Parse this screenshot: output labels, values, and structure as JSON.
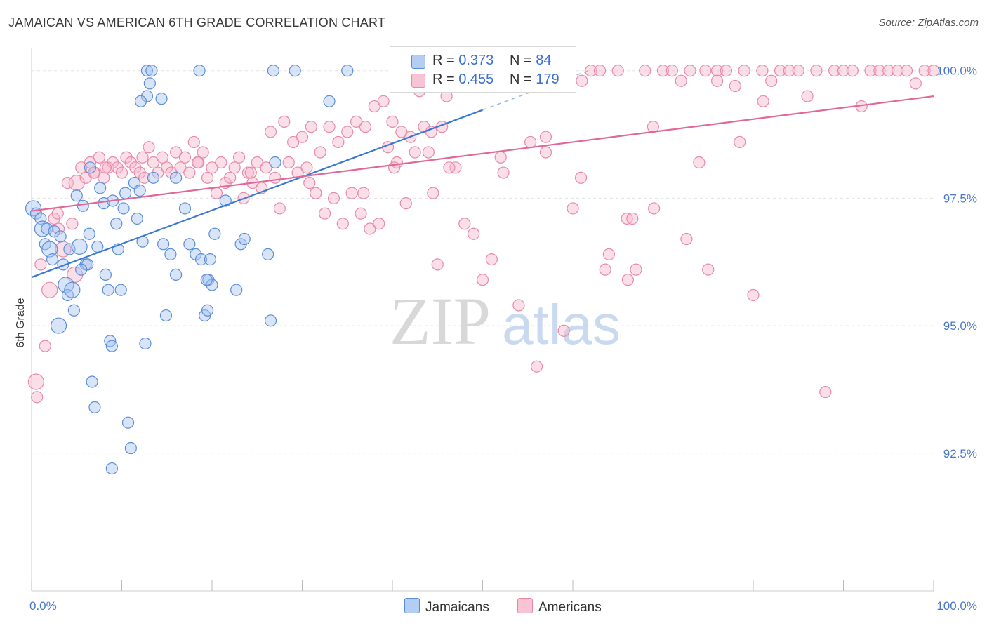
{
  "title": "JAMAICAN VS AMERICAN 6TH GRADE CORRELATION CHART",
  "source": "Source: ZipAtlas.com",
  "watermark": {
    "zip": "ZIP",
    "atlas": "atlas"
  },
  "colors": {
    "jamaicans_fill": "#a9c4ef",
    "jamaicans_stroke": "#5b8ed8",
    "jamaicans_line": "#3a78d4",
    "americans_fill": "#f6b8cc",
    "americans_stroke": "#e889a8",
    "americans_line": "#e06898",
    "tick_label": "#4a78c9",
    "grid": "#e3e3e3"
  },
  "legend_top": {
    "rows": [
      {
        "r_label": "R =",
        "r_value": "0.373",
        "n_label": "N =",
        "n_value": "84"
      },
      {
        "r_label": "R =",
        "r_value": "0.455",
        "n_label": "N =",
        "n_value": "179"
      }
    ]
  },
  "legend_bottom": {
    "items": [
      "Jamaicans",
      "Americans"
    ]
  },
  "chart_data": {
    "type": "scatter",
    "title": "JAMAICAN VS AMERICAN 6TH GRADE CORRELATION CHART",
    "xlabel": "",
    "ylabel": "6th Grade",
    "xlim": [
      0,
      100
    ],
    "ylim": [
      89.8,
      100.45
    ],
    "x_tick_labels": [
      "0.0%",
      "100.0%"
    ],
    "y_ticks": [
      92.5,
      95.0,
      97.5,
      100.0
    ],
    "y_tick_labels": [
      "92.5%",
      "95.0%",
      "97.5%",
      "100.0%"
    ],
    "grid": true,
    "legend_placement": "top-center",
    "series": [
      {
        "name": "Jamaicans",
        "r": 0.373,
        "n": 84,
        "trend": {
          "x": [
            0,
            50
          ],
          "y": [
            95.95,
            99.23
          ]
        },
        "x": [
          0.2,
          0.5,
          1.0,
          1.2,
          1.5,
          1.7,
          2.0,
          2.3,
          2.5,
          3.0,
          3.2,
          3.5,
          3.8,
          4.0,
          4.2,
          4.5,
          4.7,
          5.0,
          5.3,
          5.7,
          6.0,
          6.2,
          6.4,
          6.7,
          7.0,
          7.3,
          7.6,
          8.0,
          8.2,
          8.5,
          8.7,
          8.9,
          9.0,
          9.4,
          9.6,
          9.9,
          10.2,
          10.4,
          10.7,
          11.0,
          11.4,
          11.7,
          12.0,
          12.3,
          12.6,
          12.8,
          13.1,
          13.3,
          14.4,
          14.6,
          14.9,
          15.4,
          16.0,
          17.0,
          17.5,
          18.2,
          18.8,
          19.2,
          19.5,
          19.6,
          19.8,
          20.0,
          20.3,
          21.5,
          22.7,
          23.2,
          23.6,
          26.2,
          26.5,
          27.0,
          33.0,
          35.0
        ],
        "y": [
          97.3,
          97.2,
          97.1,
          96.9,
          96.6,
          96.9,
          96.5,
          96.3,
          96.85,
          95.0,
          96.75,
          96.2,
          95.8,
          95.6,
          96.5,
          95.7,
          95.3,
          97.55,
          96.55,
          97.35,
          96.2,
          96.2,
          96.8,
          93.9,
          93.4,
          96.55,
          97.7,
          97.4,
          96.0,
          95.7,
          94.7,
          94.6,
          97.45,
          97.0,
          96.5,
          95.7,
          97.3,
          97.6,
          93.1,
          92.6,
          97.8,
          97.1,
          97.65,
          96.65,
          94.65,
          100.0,
          99.75,
          100.0,
          99.45,
          96.6,
          95.2,
          96.4,
          96.0,
          97.3,
          96.6,
          96.4,
          96.3,
          95.2,
          95.3,
          95.9,
          96.3,
          95.8,
          96.8,
          97.45,
          95.7,
          96.6,
          96.7,
          96.4,
          95.1,
          98.2,
          99.4,
          100.0
        ],
        "extra_points": {
          "x": [
            12.8,
            16.0,
            18.6,
            26.8,
            29.2,
            8.9,
            12.1,
            6.5,
            5.5,
            13.5,
            19.4
          ],
          "y": [
            99.5,
            97.9,
            100.0,
            100.0,
            100.0,
            92.2,
            99.4,
            98.1,
            96.1,
            97.9,
            95.9
          ]
        }
      },
      {
        "name": "Americans",
        "r": 0.455,
        "n": 179,
        "trend": {
          "x": [
            0,
            100
          ],
          "y": [
            97.25,
            99.5
          ]
        },
        "x": [
          0.5,
          1.0,
          1.5,
          2.0,
          2.5,
          3.0,
          3.5,
          4.0,
          4.5,
          5.0,
          5.5,
          6.0,
          6.5,
          7.0,
          7.5,
          8.0,
          8.5,
          9.0,
          9.5,
          10.0,
          10.5,
          11.0,
          11.5,
          12.0,
          12.5,
          13.0,
          13.5,
          14.0,
          14.5,
          15.0,
          15.5,
          16.0,
          16.5,
          17.0,
          17.5,
          18.0,
          18.5,
          19.0,
          19.5,
          20.0,
          20.5,
          21.0,
          21.5,
          22.0,
          22.5,
          23.0,
          23.5,
          24.0,
          24.5,
          25.0,
          25.5,
          26.0,
          26.5,
          27.0,
          27.5,
          28.0,
          28.5,
          29.0,
          29.5,
          30.0,
          30.5,
          31.0,
          31.5,
          32.0,
          32.5,
          33.0,
          33.5,
          34.0,
          34.5,
          35.0,
          35.5,
          36.0,
          36.5,
          37.0,
          37.5,
          38.0,
          38.5,
          39.0,
          39.5,
          40.0,
          40.5,
          41.0,
          41.5,
          42.0,
          42.5,
          43.0,
          43.5,
          44.0,
          44.5,
          45.0,
          45.5,
          46.0,
          47.0,
          48.0,
          49.0,
          50.0,
          51.0,
          52.0,
          53.0,
          54.0,
          55.0,
          56.0,
          57.0,
          58.0,
          59.0,
          60.0,
          61.0,
          62.0,
          63.0,
          64.0,
          65.0,
          66.0,
          67.0,
          68.0,
          69.0,
          70.0,
          71.0,
          72.0,
          73.0,
          74.0,
          75.0,
          76.0,
          77.0,
          78.0,
          79.0,
          80.0,
          81.0,
          82.0,
          83.0,
          84.0,
          85.0,
          86.0,
          87.0,
          88.0,
          89.0,
          90.0,
          91.0,
          92.0,
          93.0,
          94.0,
          95.0,
          96.0,
          97.0,
          98.0,
          99.0,
          100.0
        ],
        "y": [
          93.9,
          96.2,
          94.6,
          95.7,
          97.1,
          96.9,
          96.5,
          97.8,
          97.0,
          97.8,
          98.1,
          97.9,
          98.2,
          98.0,
          98.3,
          97.9,
          98.1,
          98.2,
          98.1,
          98.0,
          98.3,
          98.2,
          98.1,
          98.0,
          97.9,
          98.5,
          98.2,
          98.0,
          98.3,
          98.1,
          98.0,
          98.4,
          98.1,
          98.3,
          98.0,
          98.6,
          98.2,
          98.4,
          97.9,
          98.1,
          97.6,
          98.2,
          97.8,
          97.9,
          98.1,
          98.3,
          97.5,
          98.0,
          97.8,
          98.2,
          97.7,
          98.1,
          98.8,
          97.9,
          97.3,
          99.0,
          98.2,
          98.6,
          98.0,
          98.7,
          98.1,
          98.9,
          97.6,
          98.4,
          97.2,
          98.9,
          97.5,
          98.6,
          97.0,
          98.8,
          97.6,
          99.0,
          97.2,
          98.9,
          96.9,
          99.3,
          97.0,
          99.4,
          98.5,
          99.0,
          98.2,
          98.8,
          97.4,
          98.7,
          98.4,
          99.6,
          98.9,
          98.4,
          97.6,
          96.2,
          98.9,
          99.5,
          98.1,
          97.0,
          96.8,
          95.9,
          96.3,
          98.3,
          99.9,
          95.4,
          100.0,
          94.2,
          98.7,
          99.9,
          94.9,
          97.3,
          99.8,
          100.0,
          100.0,
          96.4,
          100.0,
          97.1,
          96.1,
          100.0,
          97.3,
          100.0,
          100.0,
          99.8,
          100.0,
          98.2,
          96.1,
          100.0,
          100.0,
          99.7,
          100.0,
          95.6,
          100.0,
          99.8,
          100.0,
          100.0,
          100.0,
          99.5,
          100.0,
          93.7,
          100.0,
          100.0,
          100.0,
          99.3,
          100.0,
          100.0,
          100.0,
          100.0,
          100.0,
          99.75,
          100.0,
          100.0
        ],
        "extra_points": {
          "x": [
            0.6,
            4.8,
            2.9,
            6.9,
            8.2,
            12.3,
            18.4,
            24.3,
            30.8,
            36.8,
            40.2,
            44.3,
            46.3,
            52.3,
            55.3,
            57.0,
            60.9,
            63.6,
            66.1,
            66.6,
            68.9,
            72.6,
            74.7,
            76.0,
            78.5,
            81.1
          ],
          "y": [
            93.6,
            96.0,
            97.2,
            98.0,
            98.1,
            98.3,
            98.2,
            98.0,
            97.8,
            97.6,
            98.1,
            98.8,
            98.1,
            98.0,
            98.6,
            98.4,
            97.9,
            96.1,
            95.9,
            97.1,
            98.9,
            96.7,
            100.0,
            99.8,
            98.6,
            99.4
          ]
        }
      }
    ]
  }
}
